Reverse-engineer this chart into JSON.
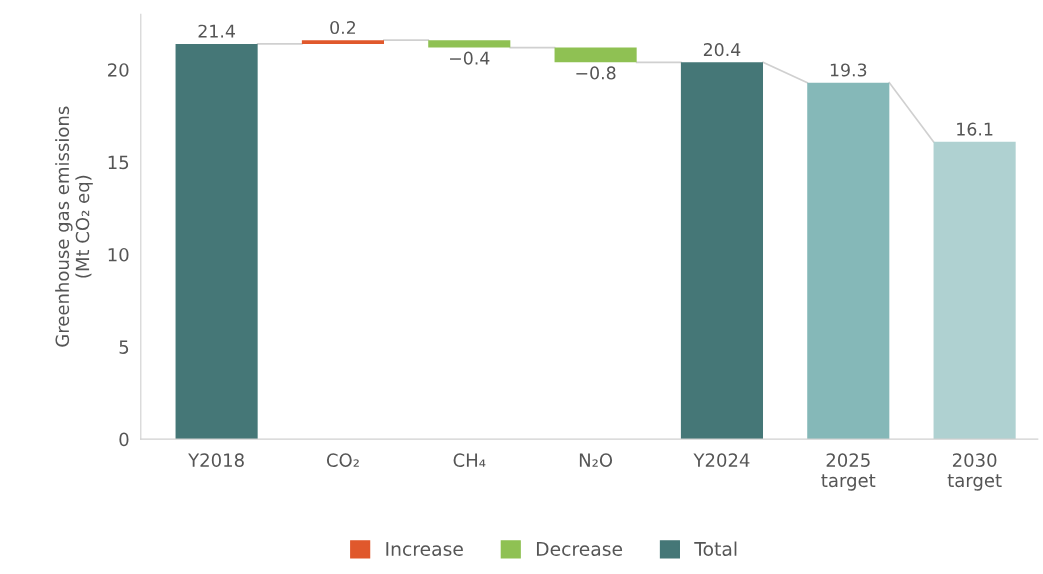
{
  "chart_data": {
    "type": "bar",
    "ylabel": "Greenhouse gas emissions\n(Mt CO₂ eq)",
    "categories": [
      "Y2018",
      "CO₂",
      "CH₄",
      "N₂O",
      "Y2024",
      "2025\ntarget",
      "2030\ntarget"
    ],
    "series": [
      {
        "name": "Increase",
        "color": "#e0582c",
        "base": [
          null,
          21.4,
          null,
          null,
          null,
          null,
          null
        ],
        "values": [
          null,
          0.2,
          null,
          null,
          null,
          null,
          null
        ],
        "value_labels": [
          null,
          "0.2",
          null,
          null,
          null,
          null,
          null
        ]
      },
      {
        "name": "Decrease",
        "color": "#8fc153",
        "base": [
          null,
          null,
          21.6,
          21.2,
          null,
          null,
          null
        ],
        "values": [
          null,
          null,
          -0.4,
          -0.8,
          null,
          null,
          null
        ],
        "value_labels": [
          null,
          null,
          "−0.4",
          "−0.8",
          null,
          null,
          null
        ]
      },
      {
        "name": "Total",
        "color": "#457777",
        "colors": [
          "#457777",
          null,
          null,
          null,
          "#457777",
          "#85b8b8",
          "#afd1d1"
        ],
        "values": [
          21.4,
          null,
          null,
          null,
          20.4,
          19.3,
          16.1
        ],
        "value_labels": [
          "21.4",
          null,
          null,
          null,
          "20.4",
          "19.3",
          "16.1"
        ]
      }
    ],
    "ylim": [
      0,
      23
    ],
    "yticks": [
      0,
      5,
      10,
      15,
      20
    ],
    "grid": false,
    "legend": "bottom"
  }
}
